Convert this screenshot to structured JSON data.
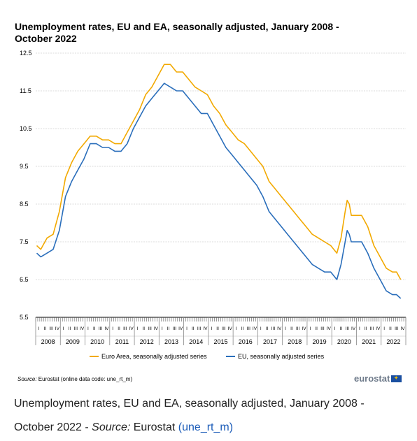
{
  "chart_data": {
    "type": "line",
    "title": "Unemployment rates, EU and EA, seasonally adjusted, January 2008 - October 2022",
    "yticks": [
      "12.5",
      "11.5",
      "10.5",
      "9.5",
      "8.5",
      "7.5",
      "6.5",
      "5.5"
    ],
    "ylim": [
      5.5,
      12.5
    ],
    "x_range": [
      "2008-01",
      "2022-10"
    ],
    "month_tick_labels": [
      "I",
      "II",
      "III",
      "IV"
    ],
    "year_labels": [
      "2008",
      "2009",
      "2010",
      "2011",
      "2012",
      "2013",
      "2014",
      "2015",
      "2016",
      "2017",
      "2018",
      "2019",
      "2020",
      "2021",
      "2022"
    ],
    "grid": true,
    "legend_position": "bottom",
    "series": [
      {
        "name": "Euro Area, seasonally adjusted series",
        "color": "#f2a900",
        "points": [
          [
            "2008-01",
            7.4
          ],
          [
            "2008-03",
            7.3
          ],
          [
            "2008-06",
            7.6
          ],
          [
            "2008-09",
            7.7
          ],
          [
            "2008-12",
            8.3
          ],
          [
            "2009-03",
            9.2
          ],
          [
            "2009-06",
            9.6
          ],
          [
            "2009-09",
            9.9
          ],
          [
            "2009-12",
            10.1
          ],
          [
            "2010-03",
            10.3
          ],
          [
            "2010-06",
            10.3
          ],
          [
            "2010-09",
            10.2
          ],
          [
            "2010-12",
            10.2
          ],
          [
            "2011-03",
            10.1
          ],
          [
            "2011-06",
            10.1
          ],
          [
            "2011-09",
            10.4
          ],
          [
            "2011-12",
            10.7
          ],
          [
            "2012-03",
            11.0
          ],
          [
            "2012-06",
            11.4
          ],
          [
            "2012-09",
            11.6
          ],
          [
            "2012-12",
            11.9
          ],
          [
            "2013-03",
            12.2
          ],
          [
            "2013-06",
            12.2
          ],
          [
            "2013-09",
            12.0
          ],
          [
            "2013-12",
            12.0
          ],
          [
            "2014-03",
            11.8
          ],
          [
            "2014-06",
            11.6
          ],
          [
            "2014-09",
            11.5
          ],
          [
            "2014-12",
            11.4
          ],
          [
            "2015-03",
            11.1
          ],
          [
            "2015-06",
            10.9
          ],
          [
            "2015-09",
            10.6
          ],
          [
            "2015-12",
            10.4
          ],
          [
            "2016-03",
            10.2
          ],
          [
            "2016-06",
            10.1
          ],
          [
            "2016-09",
            9.9
          ],
          [
            "2016-12",
            9.7
          ],
          [
            "2017-03",
            9.5
          ],
          [
            "2017-06",
            9.1
          ],
          [
            "2017-09",
            8.9
          ],
          [
            "2017-12",
            8.7
          ],
          [
            "2018-03",
            8.5
          ],
          [
            "2018-06",
            8.3
          ],
          [
            "2018-09",
            8.1
          ],
          [
            "2018-12",
            7.9
          ],
          [
            "2019-03",
            7.7
          ],
          [
            "2019-06",
            7.6
          ],
          [
            "2019-09",
            7.5
          ],
          [
            "2019-12",
            7.4
          ],
          [
            "2020-03",
            7.2
          ],
          [
            "2020-05",
            7.6
          ],
          [
            "2020-07",
            8.3
          ],
          [
            "2020-08",
            8.6
          ],
          [
            "2020-09",
            8.5
          ],
          [
            "2020-10",
            8.2
          ],
          [
            "2020-12",
            8.2
          ],
          [
            "2021-03",
            8.2
          ],
          [
            "2021-06",
            7.9
          ],
          [
            "2021-09",
            7.4
          ],
          [
            "2021-12",
            7.1
          ],
          [
            "2022-03",
            6.8
          ],
          [
            "2022-06",
            6.7
          ],
          [
            "2022-08",
            6.7
          ],
          [
            "2022-10",
            6.5
          ]
        ]
      },
      {
        "name": "EU, seasonally adjusted series",
        "color": "#2a6ebb",
        "points": [
          [
            "2008-01",
            7.2
          ],
          [
            "2008-03",
            7.1
          ],
          [
            "2008-06",
            7.2
          ],
          [
            "2008-09",
            7.3
          ],
          [
            "2008-12",
            7.8
          ],
          [
            "2009-03",
            8.7
          ],
          [
            "2009-06",
            9.1
          ],
          [
            "2009-09",
            9.4
          ],
          [
            "2009-12",
            9.7
          ],
          [
            "2010-03",
            10.1
          ],
          [
            "2010-06",
            10.1
          ],
          [
            "2010-09",
            10.0
          ],
          [
            "2010-12",
            10.0
          ],
          [
            "2011-03",
            9.9
          ],
          [
            "2011-06",
            9.9
          ],
          [
            "2011-09",
            10.1
          ],
          [
            "2011-12",
            10.5
          ],
          [
            "2012-03",
            10.8
          ],
          [
            "2012-06",
            11.1
          ],
          [
            "2012-09",
            11.3
          ],
          [
            "2012-12",
            11.5
          ],
          [
            "2013-03",
            11.7
          ],
          [
            "2013-06",
            11.6
          ],
          [
            "2013-09",
            11.5
          ],
          [
            "2013-12",
            11.5
          ],
          [
            "2014-03",
            11.3
          ],
          [
            "2014-06",
            11.1
          ],
          [
            "2014-09",
            10.9
          ],
          [
            "2014-12",
            10.9
          ],
          [
            "2015-03",
            10.6
          ],
          [
            "2015-06",
            10.3
          ],
          [
            "2015-09",
            10.0
          ],
          [
            "2015-12",
            9.8
          ],
          [
            "2016-03",
            9.6
          ],
          [
            "2016-06",
            9.4
          ],
          [
            "2016-09",
            9.2
          ],
          [
            "2016-12",
            9.0
          ],
          [
            "2017-03",
            8.7
          ],
          [
            "2017-06",
            8.3
          ],
          [
            "2017-09",
            8.1
          ],
          [
            "2017-12",
            7.9
          ],
          [
            "2018-03",
            7.7
          ],
          [
            "2018-06",
            7.5
          ],
          [
            "2018-09",
            7.3
          ],
          [
            "2018-12",
            7.1
          ],
          [
            "2019-03",
            6.9
          ],
          [
            "2019-06",
            6.8
          ],
          [
            "2019-09",
            6.7
          ],
          [
            "2019-12",
            6.7
          ],
          [
            "2020-03",
            6.5
          ],
          [
            "2020-05",
            6.9
          ],
          [
            "2020-07",
            7.5
          ],
          [
            "2020-08",
            7.8
          ],
          [
            "2020-09",
            7.7
          ],
          [
            "2020-10",
            7.5
          ],
          [
            "2020-12",
            7.5
          ],
          [
            "2021-03",
            7.5
          ],
          [
            "2021-06",
            7.2
          ],
          [
            "2021-09",
            6.8
          ],
          [
            "2021-12",
            6.5
          ],
          [
            "2022-03",
            6.2
          ],
          [
            "2022-06",
            6.1
          ],
          [
            "2022-08",
            6.1
          ],
          [
            "2022-10",
            6.0
          ]
        ]
      }
    ]
  },
  "source_small": {
    "label": "Source:",
    "text": " Eurostat (online data code: une_rt_m)"
  },
  "logo": {
    "text": "eurostat"
  },
  "caption": {
    "text": "Unemployment rates, EU and EA, seasonally adjusted, January 2008 - October 2022 - ",
    "source_label": "Source:",
    "source_text": " Eurostat ",
    "link_text": "(une_rt_m)"
  }
}
